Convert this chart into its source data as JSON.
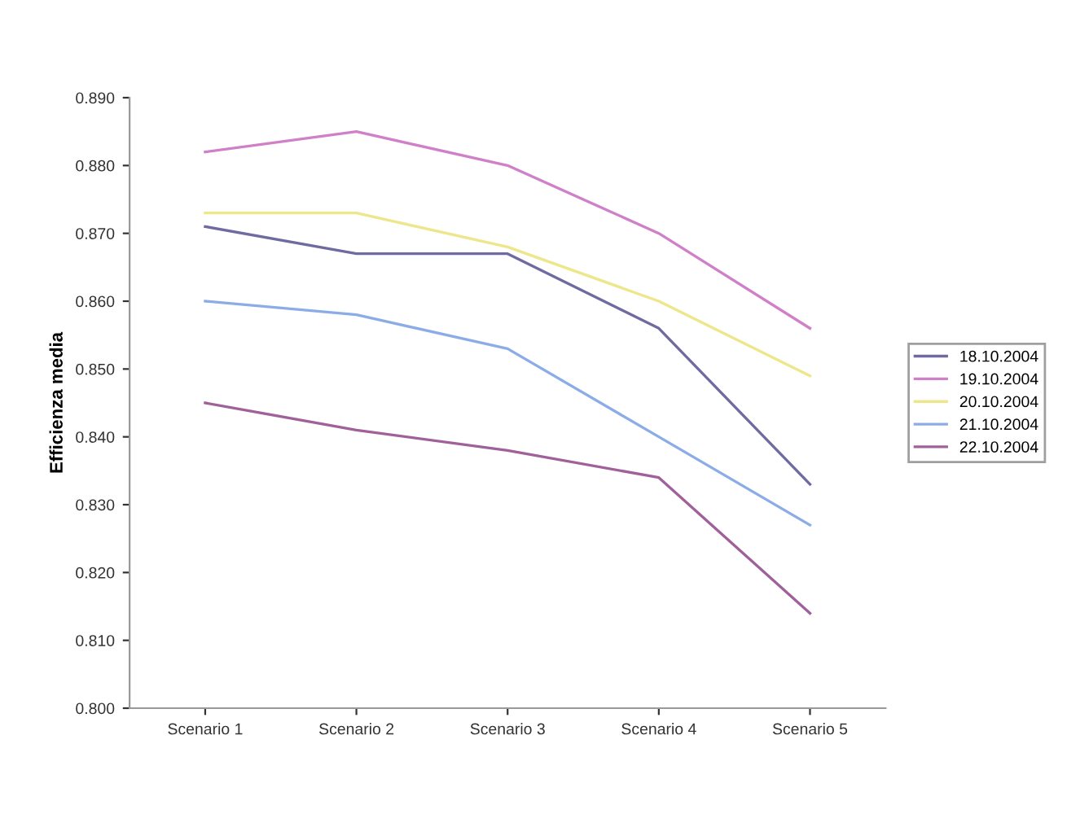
{
  "chart_data": {
    "type": "line",
    "ylabel": "Efficienza media",
    "categories": [
      "Scenario 1",
      "Scenario 2",
      "Scenario 3",
      "Scenario 4",
      "Scenario 5"
    ],
    "series": [
      {
        "name": "18.10.2004",
        "color": "#6f6aa0",
        "values": [
          0.871,
          0.867,
          0.867,
          0.856,
          0.833
        ]
      },
      {
        "name": "19.10.2004",
        "color": "#d080c8",
        "values": [
          0.882,
          0.885,
          0.88,
          0.87,
          0.856
        ]
      },
      {
        "name": "20.10.2004",
        "color": "#eee68a",
        "values": [
          0.873,
          0.873,
          0.868,
          0.86,
          0.849
        ]
      },
      {
        "name": "21.10.2004",
        "color": "#8cace8",
        "values": [
          0.86,
          0.858,
          0.853,
          0.84,
          0.827
        ]
      },
      {
        "name": "22.10.2004",
        "color": "#a0609a",
        "values": [
          0.845,
          0.841,
          0.838,
          0.834,
          0.814
        ]
      }
    ],
    "ylim": [
      0.8,
      0.89
    ],
    "yticks": [
      {
        "value": 0.8,
        "label": "0.800"
      },
      {
        "value": 0.81,
        "label": "0.810"
      },
      {
        "value": 0.82,
        "label": "0.820"
      },
      {
        "value": 0.83,
        "label": "0.830"
      },
      {
        "value": 0.84,
        "label": "0.840"
      },
      {
        "value": 0.85,
        "label": "0.850"
      },
      {
        "value": 0.86,
        "label": "0.860"
      },
      {
        "value": 0.87,
        "label": "0.870"
      },
      {
        "value": 0.88,
        "label": "0.880"
      },
      {
        "value": 0.89,
        "label": "0.890"
      }
    ],
    "grid": false,
    "legend": "right",
    "marker": "none",
    "line_style": "solid"
  }
}
